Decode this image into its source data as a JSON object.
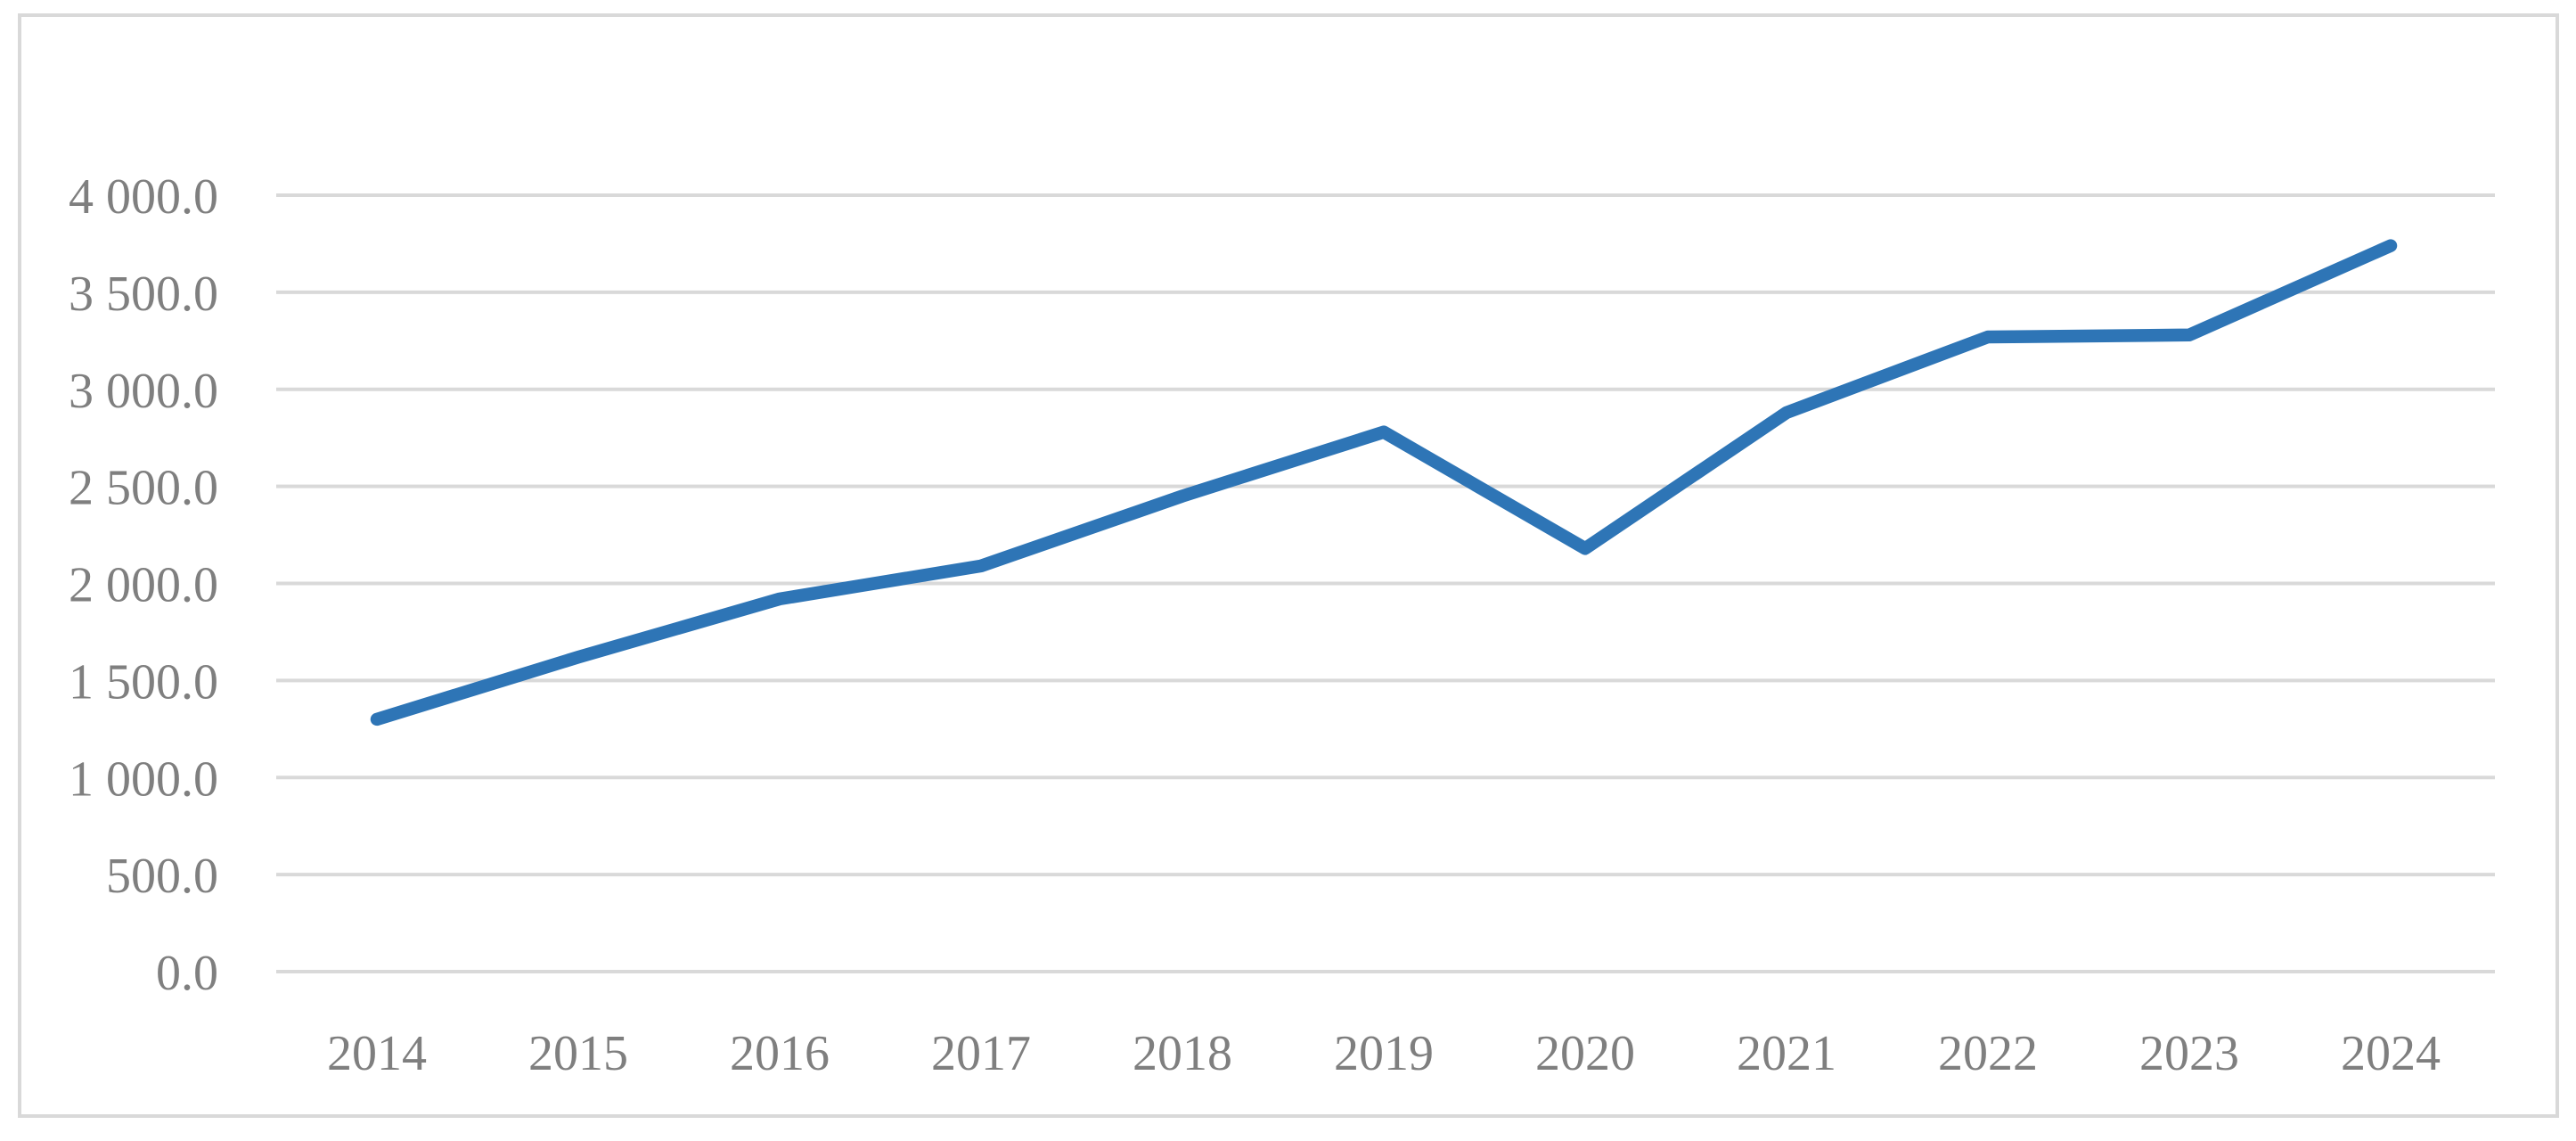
{
  "chart_data": {
    "type": "line",
    "title": "",
    "xlabel": "",
    "ylabel": "",
    "categories": [
      "2014",
      "2015",
      "2016",
      "2017",
      "2018",
      "2019",
      "2020",
      "2021",
      "2022",
      "2023",
      "2024"
    ],
    "values": [
      1300,
      1620,
      1920,
      2090,
      2450,
      2780,
      2180,
      2880,
      3270,
      3280,
      3740
    ],
    "ylim": [
      0,
      4000
    ],
    "ytick_step": 500,
    "ytick_labels": [
      "0.0",
      "500.0",
      "1 000.0",
      "1 500.0",
      "2 000.0",
      "2 500.0",
      "3 000.0",
      "3 500.0",
      "4 000.0"
    ],
    "grid": "horizontal-only",
    "legend": false,
    "colors": {
      "line": "#2E75B6",
      "gridline": "#D9D9D9",
      "frame_border": "#D9D9D9",
      "tick_label": "#7F7F7F",
      "background": "#FFFFFF"
    }
  }
}
